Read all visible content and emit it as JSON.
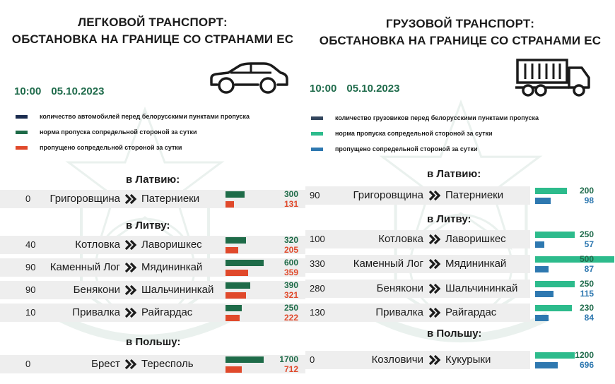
{
  "colors": {
    "dark_green": "#1f6b4b",
    "cars_queue": "#1b2c4f",
    "cars_norm": "#1e6b48",
    "cars_passed": "#e0492b",
    "trucks_queue": "#34465e",
    "trucks_norm": "#2dbb8c",
    "trucks_passed": "#2e78b0"
  },
  "icons": {
    "left_vehicle": "car-icon",
    "right_vehicle": "truck-icon",
    "separator": "double-chevron-right-icon"
  },
  "left": {
    "title_line1": "ЛЕГКОВОЙ ТРАНСПОРТ:",
    "title_line2": "ОБСТАНОВКА НА ГРАНИЦЕ СО СТРАНАМИ ЕС",
    "time": "10:00",
    "date": "05.10.2023",
    "legend": [
      "количество автомобилей перед белорусскими пунктами пропуска",
      "норма пропуска сопредельной стороной за сутки",
      "пропущено сопредельной стороной за сутки"
    ]
  },
  "right": {
    "title_line1": "ГРУЗОВОЙ ТРАНСПОРТ:",
    "title_line2": "ОБСТАНОВКА НА ГРАНИЦЕ СО СТРАНАМИ ЕС",
    "time": "10:00",
    "date": "05.10.2023",
    "legend": [
      "количество грузовиков перед белорусскими пунктами пропуска",
      "норма пропуска сопредельной стороной за сутки",
      "пропущено сопредельной стороной за сутки"
    ]
  },
  "chart_data": [
    {
      "type": "bar",
      "title": "ЛЕГКОВОЙ ТРАНСПОРТ: ОБСТАНОВКА НА ГРАНИЦЕ СО СТРАНАМИ ЕС",
      "groups": [
        {
          "title": "в Латвию:",
          "rows": [
            {
              "queue": "0",
              "from": "Григоровщина",
              "to": "Патерниеки",
              "norm": 300,
              "passed": 131
            }
          ]
        },
        {
          "title": "в Литву:",
          "rows": [
            {
              "queue": "40",
              "from": "Котловка",
              "to": "Лаворишкес",
              "norm": 320,
              "passed": 205
            },
            {
              "queue": "90",
              "from": "Каменный Лог",
              "to": "Мядининкай",
              "norm": 600,
              "passed": 359
            },
            {
              "queue": "90",
              "from": "Бенякони",
              "to": "Шальчининкай",
              "norm": 390,
              "passed": 321
            },
            {
              "queue": "10",
              "from": "Привалка",
              "to": "Райгардас",
              "norm": 250,
              "passed": 222
            }
          ]
        },
        {
          "title": "в Польшу:",
          "rows": [
            {
              "queue": "0",
              "from": "Брест",
              "to": "Тересполь",
              "norm": 1700,
              "passed": 712
            }
          ]
        }
      ]
    },
    {
      "type": "bar",
      "title": "ГРУЗОВОЙ ТРАНСПОРТ: ОБСТАНОВКА НА ГРАНИЦЕ СО СТРАНАМИ ЕС",
      "groups": [
        {
          "title": "в Латвию:",
          "rows": [
            {
              "queue": "90",
              "from": "Григоровщина",
              "to": "Патерниеки",
              "norm": 200,
              "passed": 98
            }
          ]
        },
        {
          "title": "в Литву:",
          "rows": [
            {
              "queue": "100",
              "from": "Котловка",
              "to": "Лаворишкес",
              "norm": 250,
              "passed": 57
            },
            {
              "queue": "330",
              "from": "Каменный Лог",
              "to": "Мядининкай",
              "norm": 500,
              "passed": 87
            },
            {
              "queue": "280",
              "from": "Бенякони",
              "to": "Шальчининкай",
              "norm": 250,
              "passed": 115
            },
            {
              "queue": "130",
              "from": "Привалка",
              "to": "Райгардас",
              "norm": 230,
              "passed": 84
            }
          ]
        },
        {
          "title": "в Польшу:",
          "rows": [
            {
              "queue": "0",
              "from": "Козловичи",
              "to": "Кукурыки",
              "norm": 1200,
              "passed": 696
            }
          ]
        }
      ]
    }
  ]
}
